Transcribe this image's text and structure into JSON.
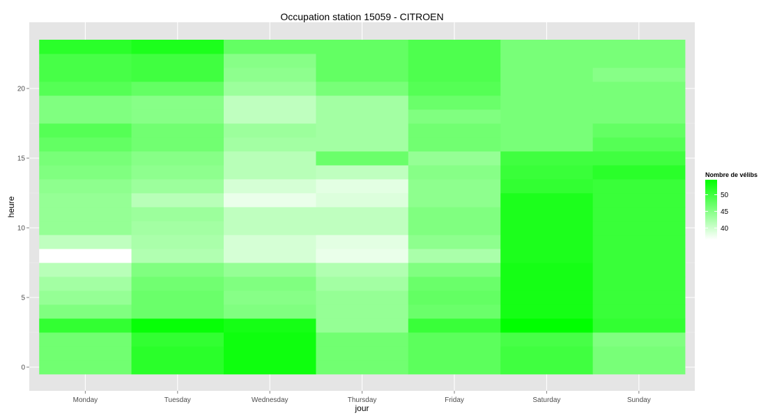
{
  "chart_data": {
    "type": "heatmap",
    "title": "Occupation station 15059 - CITROEN",
    "xlabel": "jour",
    "ylabel": "heure",
    "x_categories": [
      "Monday",
      "Tuesday",
      "Wednesday",
      "Thursday",
      "Friday",
      "Saturday",
      "Sunday"
    ],
    "y": [
      0,
      1,
      2,
      3,
      4,
      5,
      6,
      7,
      8,
      9,
      10,
      11,
      12,
      13,
      14,
      15,
      16,
      17,
      18,
      19,
      20,
      21,
      22,
      23
    ],
    "y_ticks": [
      0,
      5,
      10,
      15,
      20
    ],
    "ylim": [
      -0.5,
      23.5
    ],
    "values": [
      [
        46.5,
        51.5,
        53.5,
        46.5,
        48,
        50,
        46
      ],
      [
        46.5,
        51.5,
        53.5,
        46.5,
        48,
        50,
        46
      ],
      [
        46.5,
        51,
        53.5,
        46.5,
        48,
        49.5,
        45.5
      ],
      [
        51,
        54,
        53,
        44,
        50.5,
        54.5,
        51
      ],
      [
        45.5,
        47,
        45.5,
        44,
        47,
        53,
        50.5
      ],
      [
        44,
        47,
        45,
        44,
        47.5,
        53,
        50.5
      ],
      [
        43,
        46.5,
        45.5,
        43,
        47,
        53,
        50.5
      ],
      [
        41.5,
        45.5,
        44,
        42,
        45.5,
        53,
        50.5
      ],
      [
        36.5,
        42,
        39.5,
        38,
        42.5,
        52.5,
        50.5
      ],
      [
        41,
        42.5,
        39.5,
        38.5,
        44.5,
        52.5,
        50.5
      ],
      [
        44,
        43,
        41,
        41,
        45.5,
        52.5,
        50.5
      ],
      [
        44,
        43.5,
        41,
        41,
        45.5,
        52.5,
        50.5
      ],
      [
        44,
        41.5,
        38,
        39,
        44.5,
        52.5,
        50.5
      ],
      [
        44.5,
        43.5,
        39.5,
        38.5,
        44.5,
        51,
        50.5
      ],
      [
        45.5,
        44.5,
        41.5,
        41,
        45,
        50.5,
        51.5
      ],
      [
        46,
        45,
        41.5,
        47,
        44,
        50,
        50
      ],
      [
        47.5,
        46.5,
        43,
        43,
        46.5,
        46,
        48.5
      ],
      [
        48.5,
        46.5,
        43.5,
        43,
        46.5,
        46,
        47.5
      ],
      [
        45.5,
        45,
        41,
        43,
        45.5,
        46,
        46
      ],
      [
        45.5,
        45,
        41,
        43,
        47,
        46,
        46
      ],
      [
        48.5,
        47.5,
        43.5,
        46,
        48.5,
        46,
        46
      ],
      [
        49.5,
        50,
        44.5,
        47.5,
        49,
        46,
        45
      ],
      [
        49.5,
        50,
        45,
        47.5,
        49,
        46,
        46
      ],
      [
        51.5,
        52.5,
        47.5,
        47.5,
        49,
        46,
        46
      ]
    ],
    "legend": {
      "title": "Nombre de vélibs",
      "labels": [
        "50",
        "45",
        "40"
      ],
      "label_values": [
        50,
        45,
        40
      ],
      "range": [
        36.5,
        54.5
      ],
      "low_color": "#ffffff",
      "high_color": "#00ff00",
      "position": "right"
    },
    "colors": {
      "panel_background": "#e5e5e5",
      "grid_major": "#ffffff",
      "grid_minor": "#f2f2f2"
    },
    "grid": true
  }
}
